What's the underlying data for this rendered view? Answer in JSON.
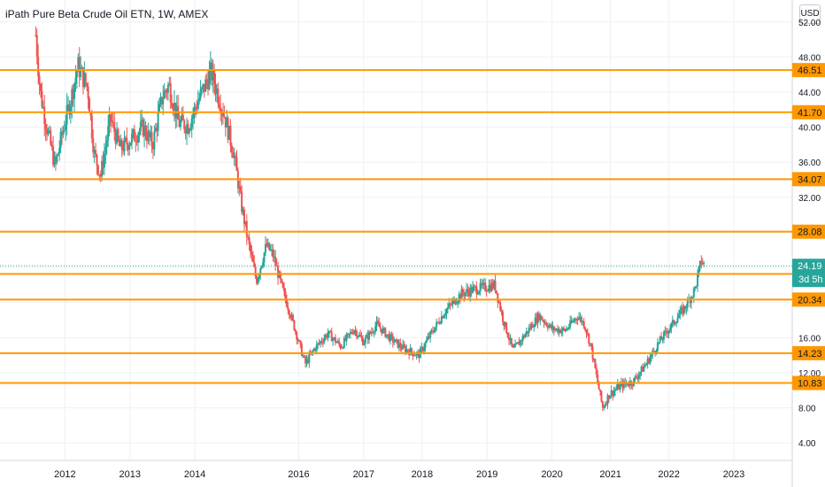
{
  "header": {
    "title": "iPath Pure Beta Crude Oil ETN, 1W, AMEX",
    "currency": "USD"
  },
  "colors": {
    "up": "#26a69a",
    "down": "#ef5350",
    "level": "#ff9800",
    "last": "#26a69a",
    "grid": "#eef0f4",
    "axis_text": "#131722"
  },
  "chart_data": {
    "type": "candlestick",
    "title": "iPath Pure Beta Crude Oil ETN, 1W, AMEX",
    "timeframe": "1W",
    "currency": "USD",
    "xlim": [
      2011.0,
      2023.2
    ],
    "ylim": [
      2.0,
      54.5
    ],
    "y_ticks": [
      "52.00",
      "48.00",
      "44.00",
      "40.00",
      "36.00",
      "32.00",
      "28.00",
      "24.00",
      "20.00",
      "16.00",
      "12.00",
      "8.00",
      "4.00"
    ],
    "x_ticks": [
      "2012",
      "2013",
      "2014",
      "2016",
      "2017",
      "2018",
      "2019",
      "2020",
      "2021",
      "2022",
      "2023"
    ],
    "x_tick_positions": [
      2012,
      2013,
      2014,
      2015.6,
      2016.6,
      2017.5,
      2018.5,
      2019.5,
      2020.4,
      2021.3,
      2022.3
    ],
    "grid": true,
    "horizontal_levels": [
      {
        "value": 46.51,
        "label": "46.51"
      },
      {
        "value": 41.7,
        "label": "41.70"
      },
      {
        "value": 34.07,
        "label": "34.07"
      },
      {
        "value": 28.08,
        "label": "28.08"
      },
      {
        "value": 23.27,
        "label": "23.27"
      },
      {
        "value": 20.34,
        "label": "20.34"
      },
      {
        "value": 14.23,
        "label": "14.23"
      },
      {
        "value": 10.83,
        "label": "10.83"
      }
    ],
    "last_price": {
      "value": 24.19,
      "label": "24.19",
      "countdown": "3d 5h"
    },
    "price_path": [
      [
        2011.55,
        50.5
      ],
      [
        2011.62,
        44.0
      ],
      [
        2011.72,
        40.0
      ],
      [
        2011.85,
        35.5
      ],
      [
        2011.95,
        39.0
      ],
      [
        2012.1,
        43.5
      ],
      [
        2012.2,
        47.0
      ],
      [
        2012.35,
        44.5
      ],
      [
        2012.45,
        37.0
      ],
      [
        2012.55,
        34.5
      ],
      [
        2012.7,
        41.0
      ],
      [
        2012.85,
        37.5
      ],
      [
        2013.0,
        38.5
      ],
      [
        2013.2,
        40.0
      ],
      [
        2013.35,
        38.0
      ],
      [
        2013.5,
        43.5
      ],
      [
        2013.6,
        44.8
      ],
      [
        2013.75,
        40.5
      ],
      [
        2013.9,
        40.2
      ],
      [
        2014.05,
        43.0
      ],
      [
        2014.25,
        46.3
      ],
      [
        2014.45,
        41.5
      ],
      [
        2014.6,
        37.0
      ],
      [
        2014.72,
        31.0
      ],
      [
        2014.82,
        27.0
      ],
      [
        2014.95,
        22.5
      ],
      [
        2015.1,
        26.5
      ],
      [
        2015.2,
        25.5
      ],
      [
        2015.35,
        21.5
      ],
      [
        2015.5,
        18.0
      ],
      [
        2015.7,
        13.0
      ],
      [
        2015.85,
        14.8
      ],
      [
        2016.05,
        16.5
      ],
      [
        2016.25,
        15.0
      ],
      [
        2016.45,
        17.0
      ],
      [
        2016.6,
        15.5
      ],
      [
        2016.8,
        17.5
      ],
      [
        2017.0,
        16.0
      ],
      [
        2017.2,
        14.8
      ],
      [
        2017.45,
        14.0
      ],
      [
        2017.6,
        16.0
      ],
      [
        2017.85,
        19.0
      ],
      [
        2018.1,
        21.0
      ],
      [
        2018.3,
        21.5
      ],
      [
        2018.5,
        21.8
      ],
      [
        2018.62,
        22.0
      ],
      [
        2018.75,
        18.0
      ],
      [
        2018.9,
        14.5
      ],
      [
        2019.1,
        16.5
      ],
      [
        2019.3,
        18.5
      ],
      [
        2019.5,
        17.0
      ],
      [
        2019.7,
        16.8
      ],
      [
        2019.9,
        18.5
      ],
      [
        2020.0,
        17.5
      ],
      [
        2020.1,
        15.0
      ],
      [
        2020.2,
        11.0
      ],
      [
        2020.28,
        8.0
      ],
      [
        2020.38,
        9.5
      ],
      [
        2020.55,
        10.5
      ],
      [
        2020.75,
        11.0
      ],
      [
        2020.95,
        13.0
      ],
      [
        2021.15,
        15.5
      ],
      [
        2021.35,
        17.5
      ],
      [
        2021.55,
        19.5
      ],
      [
        2021.7,
        21.5
      ],
      [
        2021.8,
        24.8
      ],
      [
        2021.85,
        24.19
      ]
    ]
  }
}
